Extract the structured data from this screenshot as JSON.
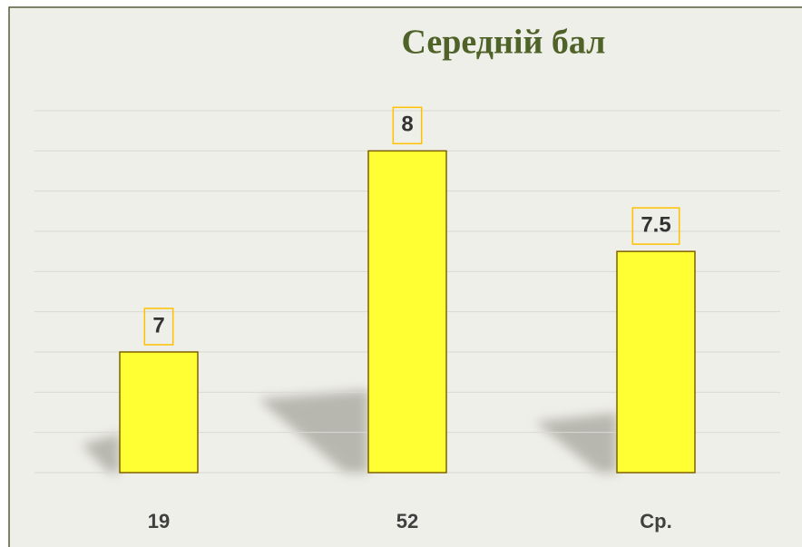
{
  "chart_data": {
    "type": "bar",
    "title": "Середній бал",
    "categories": [
      "19",
      "52",
      "Ср."
    ],
    "values": [
      7,
      8,
      7.5
    ],
    "color": "#ffff33",
    "ylim": [
      6.4,
      8.2
    ],
    "yticks": [
      6.4,
      6.6,
      6.8,
      7,
      7.2,
      7.4,
      7.6,
      7.8,
      8,
      8.2
    ],
    "grid": true
  }
}
